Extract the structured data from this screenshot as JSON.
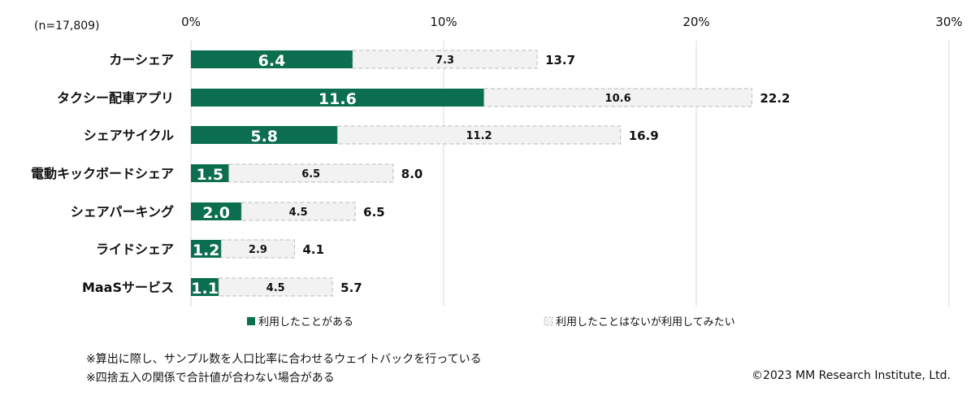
{
  "sample_size": "(n=17,809)",
  "chart_data": {
    "type": "bar",
    "orientation": "horizontal",
    "stacked": true,
    "categories": [
      "カーシェア",
      "タクシー配車アプリ",
      "シェアサイクル",
      "電動キックボードシェア",
      "シェアパーキング",
      "ライドシェア",
      "MaaSサービス"
    ],
    "series": [
      {
        "name": "利用したことがある",
        "values": [
          6.4,
          11.6,
          5.8,
          1.5,
          2.0,
          1.2,
          1.1
        ],
        "value_labels": [
          "6.4",
          "11.6",
          "5.8",
          "1.5",
          "2.0",
          "1.2",
          "1.1"
        ]
      },
      {
        "name": "利用したことはないが利用してみたい",
        "values": [
          7.3,
          10.6,
          11.2,
          6.5,
          4.5,
          2.9,
          4.5
        ],
        "value_labels": [
          "7.3",
          "10.6",
          "11.2",
          "6.5",
          "4.5",
          "2.9",
          "4.5"
        ]
      }
    ],
    "totals": [
      "13.7",
      "22.2",
      "16.9",
      "8.0",
      "6.5",
      "4.1",
      "5.7"
    ],
    "xlim": [
      0,
      30
    ],
    "x_ticks": [
      "0%",
      "10%",
      "20%",
      "30%"
    ],
    "x_tick_values": [
      0,
      10,
      20,
      30
    ],
    "grid": true,
    "legend_position": "bottom",
    "colors": {
      "used": "#0b6e4f",
      "want": "#f2f2f2",
      "want_border": "#bbbbbb",
      "grid": "#d9d9d9"
    }
  },
  "notes": [
    "※算出に際し、サンプル数を人口比率に合わせるウェイトバックを行っている",
    "※四捨五入の関係で合計値が合わない場合がある"
  ],
  "copyright": "©2023 MM Research Institute, Ltd."
}
